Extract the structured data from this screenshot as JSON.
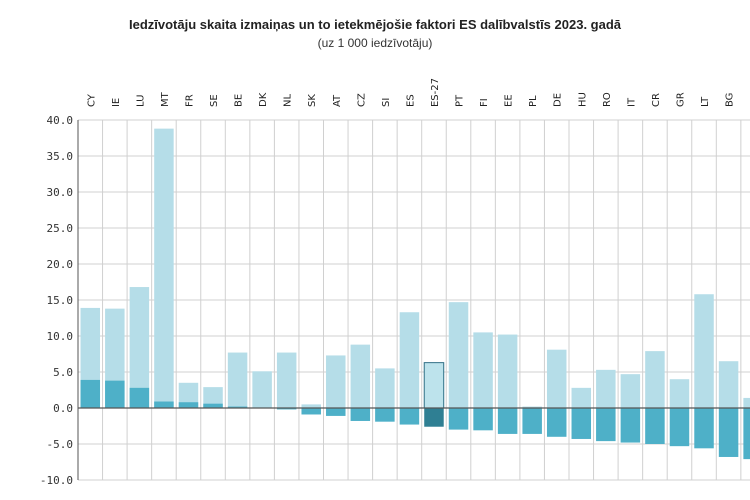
{
  "chart_data": {
    "type": "bar",
    "title": "Iedzīvotāju skaita izmaiņas un to ietekmējošie faktori ES dalībvalstīs 2023. gadā",
    "subtitle": "(uz 1 000 iedzīvotāju)",
    "categories": [
      "CY",
      "IE",
      "LU",
      "MT",
      "FR",
      "SE",
      "BE",
      "DK",
      "NL",
      "SK",
      "AT",
      "CZ",
      "SI",
      "ES",
      "ES-27",
      "PT",
      "FI",
      "EE",
      "PL",
      "DE",
      "HU",
      "RO",
      "IT",
      "CR",
      "GR",
      "LT",
      "BG",
      ""
    ],
    "highlight_category": "ES-27",
    "series": [
      {
        "values": [
          13.9,
          13.8,
          16.8,
          38.8,
          3.5,
          2.9,
          7.7,
          5.1,
          7.7,
          0.5,
          7.3,
          8.8,
          5.5,
          13.3,
          6.3,
          14.7,
          10.5,
          10.2,
          0.2,
          8.1,
          2.8,
          5.3,
          4.7,
          7.9,
          4.0,
          15.8,
          6.5,
          1.4
        ]
      },
      {
        "values": [
          3.9,
          3.8,
          2.8,
          0.9,
          0.8,
          0.6,
          0.2,
          0.0,
          -0.2,
          -0.9,
          -1.1,
          -1.8,
          -1.9,
          -2.3,
          -2.6,
          -3.0,
          -3.1,
          -3.6,
          -3.6,
          -4.0,
          -4.3,
          -4.6,
          -4.8,
          -5.0,
          -5.3,
          -5.6,
          -6.8,
          -7.1
        ]
      }
    ],
    "ylim": [
      -10,
      40
    ],
    "yticks": [
      "40.0",
      "35.0",
      "30.0",
      "25.0",
      "20.0",
      "15.0",
      "10.0",
      "5.0",
      "0.0",
      "-5.0",
      "-10.0"
    ],
    "grid": true,
    "colors": {
      "light": "#b5dde8",
      "dark": "#4eb0c8",
      "light_highlight": "#bde3ec",
      "dark_highlight": "#2f7f93",
      "highlight_border": "#2f6f85",
      "grid": "#d0d0d0",
      "axis": "#555555"
    }
  }
}
